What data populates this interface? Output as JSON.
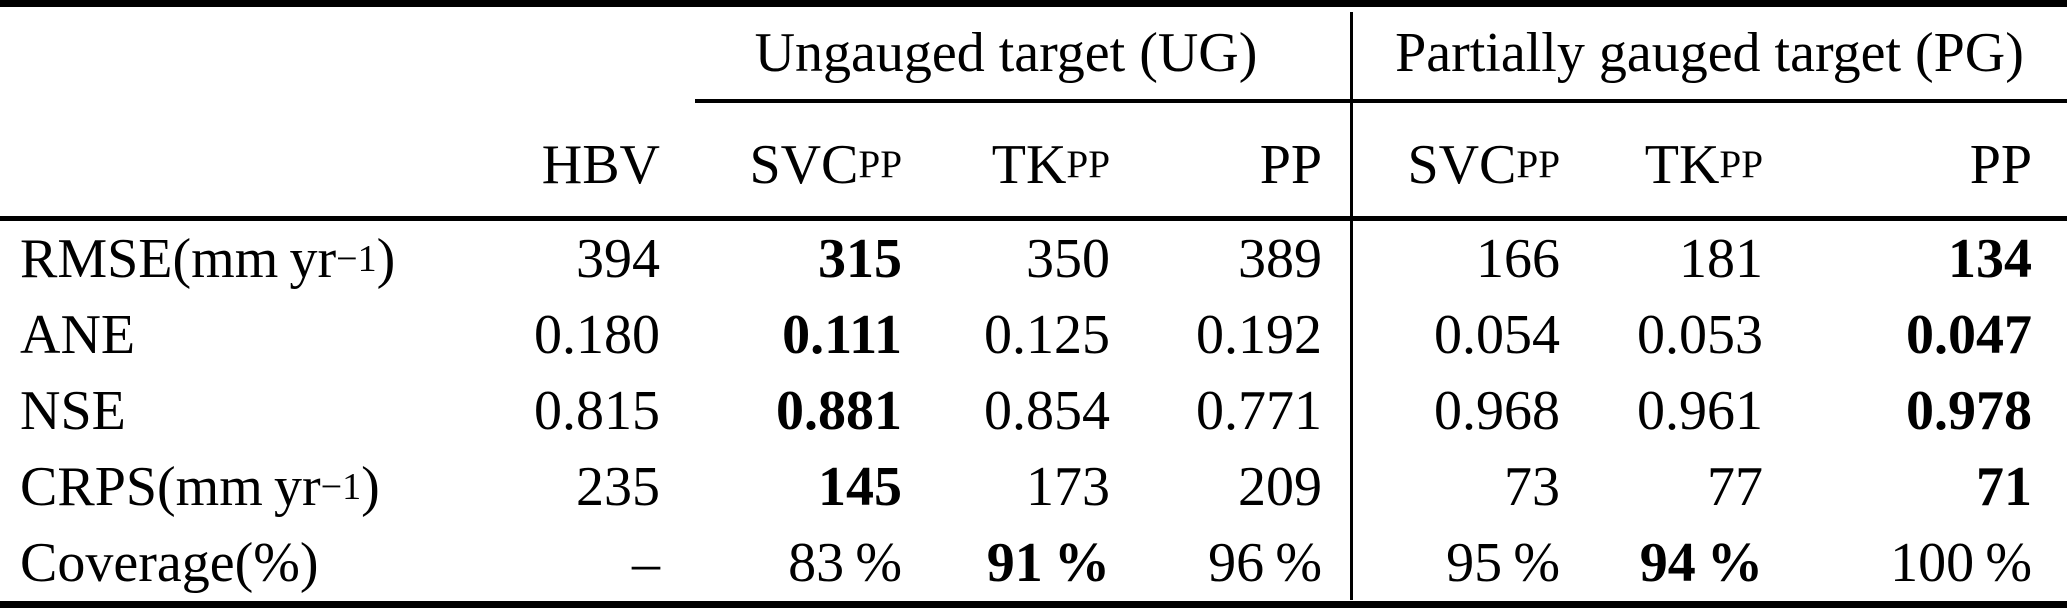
{
  "page": {
    "background_color": "#ffffff",
    "text_color": "#000000"
  },
  "table": {
    "group_headers": [
      {
        "label": "Ungauged target (UG)"
      },
      {
        "label": "Partially gauged target (PG)"
      }
    ],
    "column_headers": [
      {
        "base": "HBV",
        "sub": ""
      },
      {
        "base": "SVC",
        "sub": "PP"
      },
      {
        "base": "TK",
        "sub": "PP"
      },
      {
        "base": "PP",
        "sub": ""
      },
      {
        "base": "SVC",
        "sub": "PP"
      },
      {
        "base": "TK",
        "sub": "PP"
      },
      {
        "base": "PP",
        "sub": ""
      }
    ],
    "rows": [
      {
        "metric": {
          "name": "RMSE",
          "unit_pre": " (mm yr",
          "unit_sup": "−1",
          "unit_post": ")"
        },
        "values": [
          "394",
          "315",
          "350",
          "389",
          "166",
          "181",
          "134"
        ],
        "bold": [
          false,
          true,
          false,
          false,
          false,
          false,
          true
        ]
      },
      {
        "metric": {
          "name": "ANE",
          "unit_pre": "",
          "unit_sup": "",
          "unit_post": ""
        },
        "values": [
          "0.180",
          "0.111",
          "0.125",
          "0.192",
          "0.054",
          "0.053",
          "0.047"
        ],
        "bold": [
          false,
          true,
          false,
          false,
          false,
          false,
          true
        ]
      },
      {
        "metric": {
          "name": "NSE",
          "unit_pre": "",
          "unit_sup": "",
          "unit_post": ""
        },
        "values": [
          "0.815",
          "0.881",
          "0.854",
          "0.771",
          "0.968",
          "0.961",
          "0.978"
        ],
        "bold": [
          false,
          true,
          false,
          false,
          false,
          false,
          true
        ]
      },
      {
        "metric": {
          "name": "CRPS",
          "unit_pre": " (mm yr",
          "unit_sup": "−1",
          "unit_post": ")"
        },
        "values": [
          "235",
          "145",
          "173",
          "209",
          "73",
          "77",
          "71"
        ],
        "bold": [
          false,
          true,
          false,
          false,
          false,
          false,
          true
        ]
      },
      {
        "metric": {
          "name": "Coverage",
          "unit_pre": " (%)",
          "unit_sup": "",
          "unit_post": ""
        },
        "values": [
          "–",
          "83 %",
          "91 %",
          "96 %",
          "95 %",
          "94 %",
          "100 %"
        ],
        "bold": [
          false,
          false,
          true,
          false,
          false,
          true,
          false
        ]
      }
    ]
  }
}
